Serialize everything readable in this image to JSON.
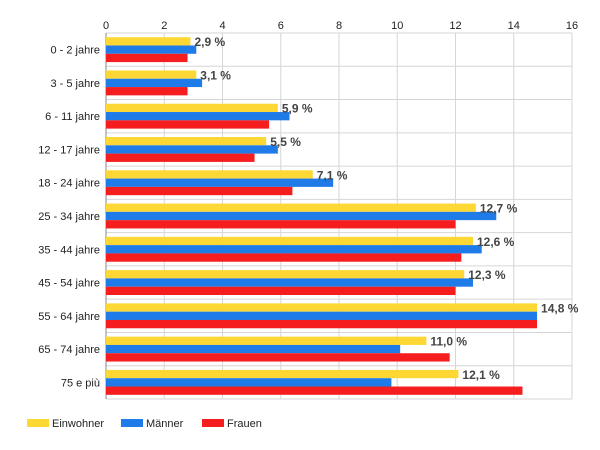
{
  "chart_data": {
    "type": "bar",
    "orientation": "horizontal",
    "categories": [
      "0 - 2 jahre",
      "3 - 5 jahre",
      "6 - 11 jahre",
      "12 - 17 jahre",
      "18 - 24 jahre",
      "25 - 34 jahre",
      "35 - 44 jahre",
      "45 - 54 jahre",
      "55 - 64 jahre",
      "65 - 74 jahre",
      "75 e più"
    ],
    "series": [
      {
        "name": "Einwohner",
        "color": "#fdd835",
        "values": [
          2.9,
          3.1,
          5.9,
          5.5,
          7.1,
          12.7,
          12.6,
          12.3,
          14.8,
          11.0,
          12.1
        ]
      },
      {
        "name": "Männer",
        "color": "#1e7be8",
        "values": [
          3.1,
          3.3,
          6.3,
          5.9,
          7.8,
          13.4,
          12.9,
          12.6,
          14.8,
          10.1,
          9.8
        ]
      },
      {
        "name": "Frauen",
        "color": "#f51d1d",
        "values": [
          2.8,
          2.8,
          5.6,
          5.1,
          6.4,
          12.0,
          12.2,
          12.0,
          14.8,
          11.8,
          14.3
        ]
      }
    ],
    "data_labels": [
      "2,9 %",
      "3,1 %",
      "5,9 %",
      "5,5 %",
      "7,1 %",
      "12,7 %",
      "12,6 %",
      "12,3 %",
      "14,8 %",
      "11,0 %",
      "12,1 %"
    ],
    "xlim": [
      0,
      16
    ],
    "xticks": [
      0,
      2,
      4,
      6,
      8,
      10,
      12,
      14,
      16
    ],
    "tick_labels": [
      "0",
      "2",
      "4",
      "6",
      "8",
      "10",
      "12",
      "14",
      "16"
    ],
    "grid": true,
    "legend_position": "bottom-left"
  }
}
